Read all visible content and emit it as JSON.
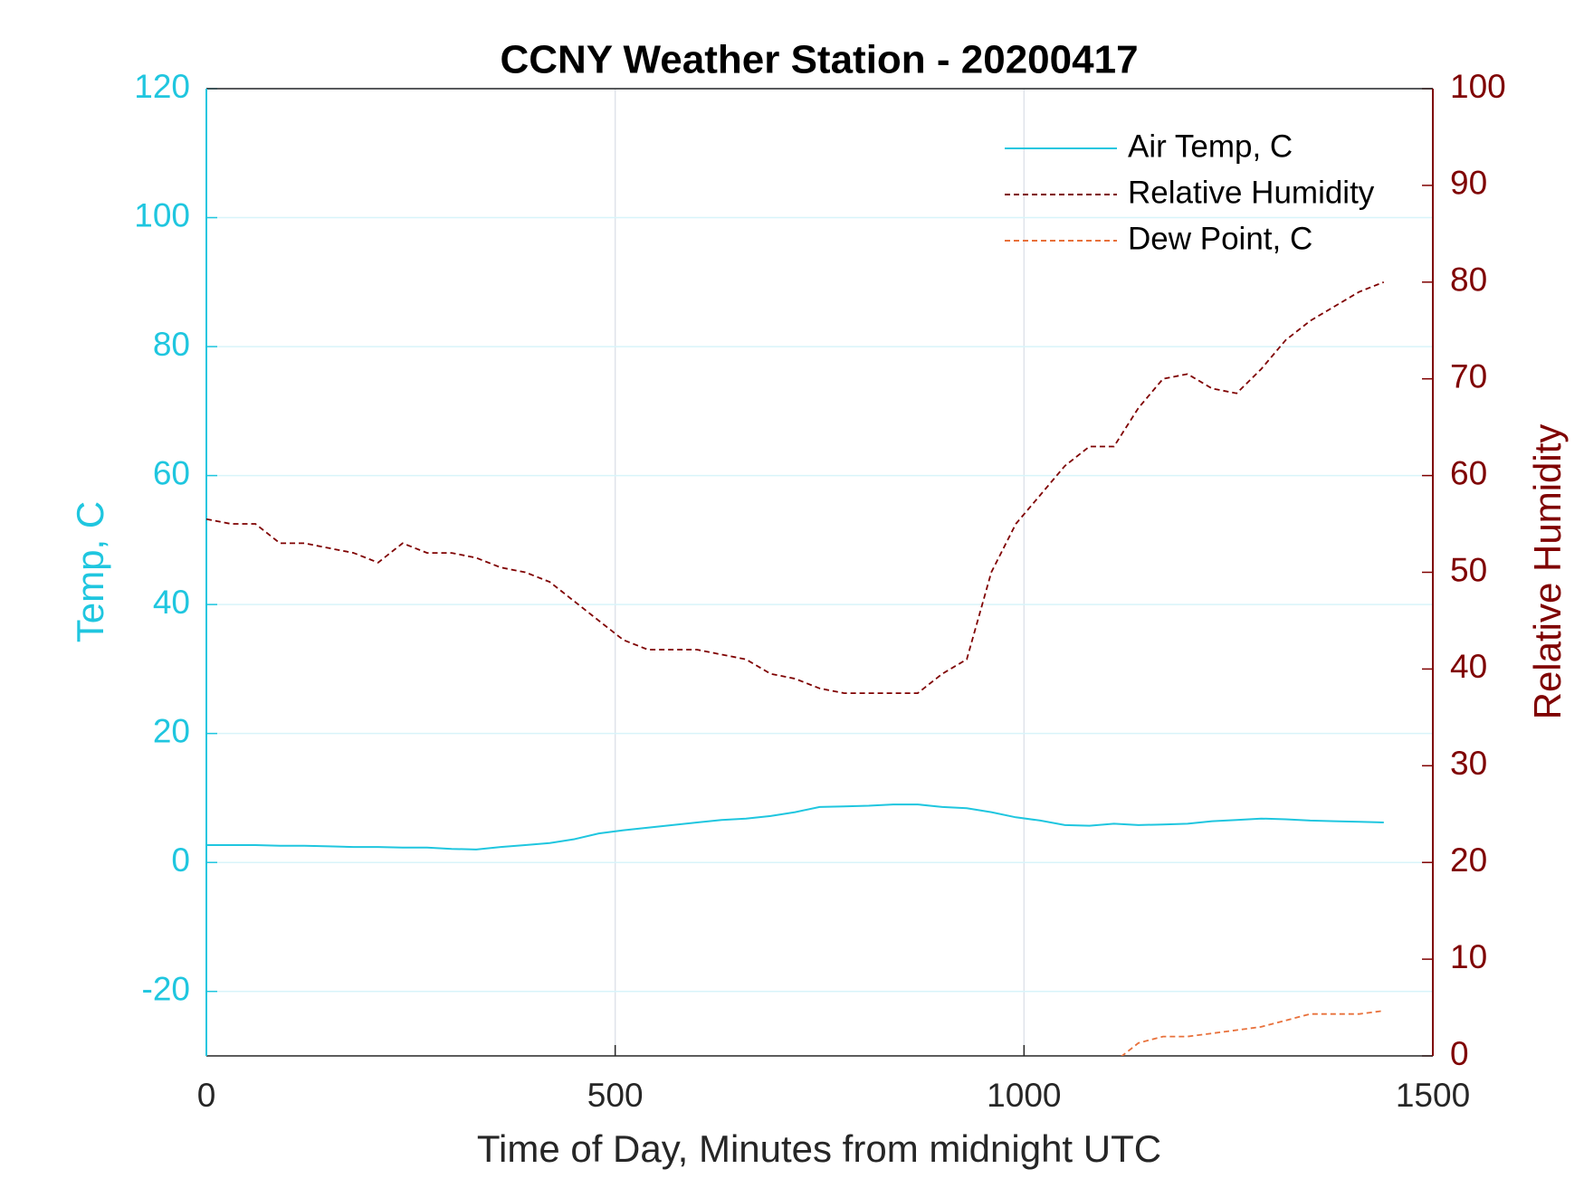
{
  "chart_data": {
    "type": "line",
    "title": "CCNY Weather Station - 20200417",
    "xlabel": "Time of Day, Minutes from midnight UTC",
    "ylabel": "Temp, C",
    "y2label": "Relative Humidity",
    "x": [
      0,
      30,
      60,
      90,
      120,
      150,
      180,
      210,
      240,
      270,
      300,
      330,
      360,
      390,
      420,
      450,
      480,
      510,
      540,
      570,
      600,
      630,
      660,
      690,
      720,
      750,
      780,
      810,
      840,
      870,
      900,
      930,
      960,
      990,
      1020,
      1050,
      1080,
      1110,
      1140,
      1170,
      1200,
      1230,
      1260,
      1290,
      1320,
      1350,
      1380,
      1410,
      1440
    ],
    "series": [
      {
        "name": "Air Temp, C",
        "color": "#1fc6df",
        "linestyle": "solid",
        "axis": "y",
        "values": [
          2.7,
          2.7,
          2.7,
          2.6,
          2.6,
          2.5,
          2.4,
          2.4,
          2.3,
          2.3,
          2.1,
          2.0,
          2.4,
          2.7,
          3.0,
          3.6,
          4.5,
          5.0,
          5.4,
          5.8,
          6.2,
          6.6,
          6.8,
          7.2,
          7.8,
          8.6,
          8.7,
          8.8,
          9.0,
          9.0,
          8.6,
          8.4,
          7.8,
          7.0,
          6.5,
          5.8,
          5.7,
          6.0,
          5.8,
          5.9,
          6.0,
          6.4,
          6.6,
          6.8,
          6.7,
          6.5,
          6.4,
          6.3,
          6.2
        ]
      },
      {
        "name": "Relative Humidity",
        "color": "#7f0000",
        "linestyle": "dashed",
        "axis": "y2",
        "values": [
          55.5,
          55,
          55,
          53,
          53,
          52.5,
          52,
          51,
          53,
          52,
          52,
          51.5,
          50.5,
          50,
          49,
          47,
          45,
          43,
          42,
          42,
          42,
          41.5,
          41,
          39.5,
          39,
          38,
          37.5,
          37.5,
          37.5,
          37.5,
          39.5,
          41,
          50,
          55,
          58,
          61,
          63,
          63,
          67,
          70,
          70.5,
          69,
          68.5,
          71,
          74,
          76,
          77.5,
          79,
          80
        ]
      },
      {
        "name": "Dew Point, C",
        "color": "#e8703a",
        "linestyle": "dashed",
        "axis": "y",
        "values": [
          null,
          null,
          null,
          null,
          null,
          null,
          null,
          null,
          null,
          null,
          null,
          null,
          null,
          null,
          null,
          null,
          null,
          null,
          null,
          null,
          null,
          null,
          null,
          null,
          null,
          null,
          null,
          null,
          null,
          null,
          null,
          null,
          null,
          null,
          null,
          null,
          null,
          -31,
          -28,
          -27,
          -27,
          -26.5,
          -26,
          -25.5,
          -24.5,
          -23.5,
          -23.5,
          -23.5,
          -23
        ]
      }
    ],
    "xlim": [
      0,
      1500
    ],
    "xticks": [
      0,
      500,
      1000,
      1500
    ],
    "ylim": [
      -30,
      120
    ],
    "yticks": [
      -20,
      0,
      20,
      40,
      60,
      80,
      100,
      120
    ],
    "y2lim": [
      0,
      100
    ],
    "y2ticks": [
      0,
      10,
      20,
      30,
      40,
      50,
      60,
      70,
      80,
      90,
      100
    ],
    "y_color": "#1fc6df",
    "y2_color": "#7f0000",
    "grid": true,
    "legend": "upper right"
  }
}
